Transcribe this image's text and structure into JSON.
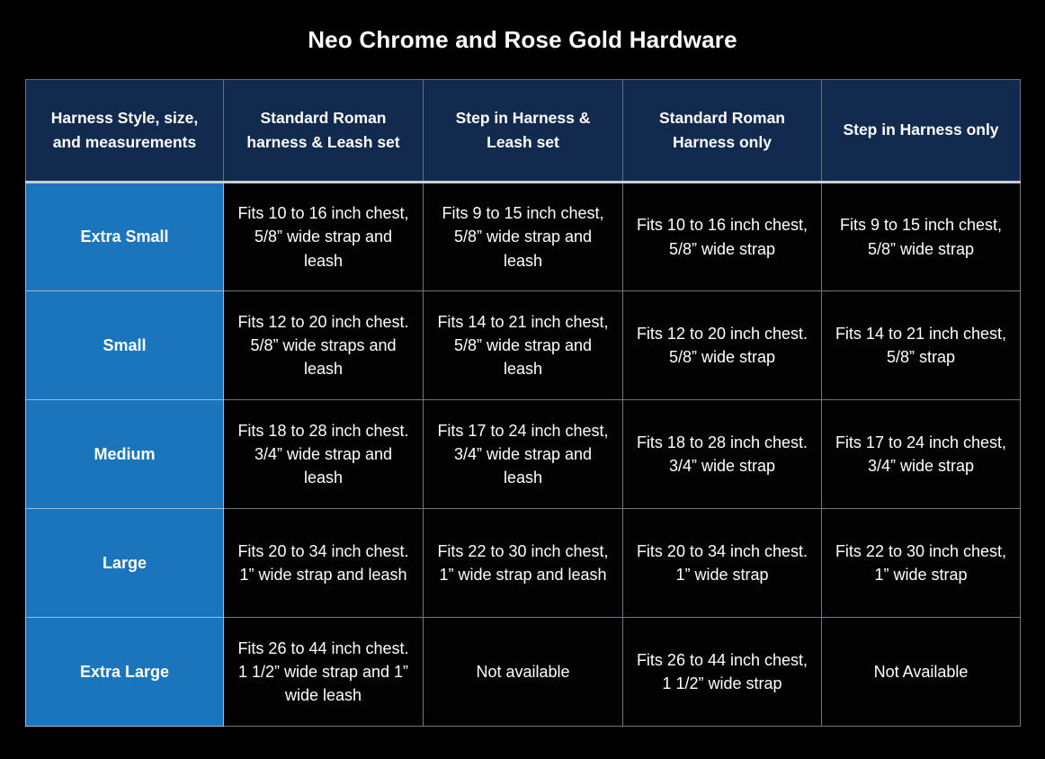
{
  "title": "Neo Chrome and Rose Gold Hardware",
  "colors": {
    "background": "#000000",
    "header_bg": "#112a4e",
    "row_label_bg": "#1b75bc",
    "cell_bg": "#020202",
    "text": "#ffffff",
    "grid_line": "#87909a"
  },
  "chart_data": {
    "type": "table",
    "title": "Neo Chrome and Rose Gold Hardware",
    "columns": [
      "Harness Style, size, and measurements",
      "Standard Roman harness & Leash set",
      "Step in Harness & Leash set",
      "Standard Roman Harness only",
      "Step in Harness only"
    ],
    "rows": [
      {
        "label": "Extra Small",
        "cells": [
          "Fits 10 to 16 inch chest, 5/8” wide strap and leash",
          "Fits 9 to 15 inch chest, 5/8” wide strap and leash",
          "Fits 10 to 16 inch chest, 5/8” wide strap",
          "Fits 9 to 15 inch chest, 5/8” wide strap"
        ]
      },
      {
        "label": "Small",
        "cells": [
          "Fits 12 to 20 inch chest. 5/8” wide straps and leash",
          "Fits 14 to 21 inch chest, 5/8” wide strap and leash",
          "Fits 12 to 20 inch chest. 5/8” wide strap",
          "Fits 14 to 21 inch chest, 5/8” strap"
        ]
      },
      {
        "label": "Medium",
        "cells": [
          "Fits 18 to 28 inch chest. 3/4” wide strap and leash",
          "Fits 17 to 24 inch chest, 3/4” wide strap and leash",
          "Fits 18 to 28 inch chest. 3/4” wide strap",
          "Fits 17 to 24 inch chest, 3/4” wide strap"
        ]
      },
      {
        "label": "Large",
        "cells": [
          "Fits 20 to 34 inch chest. 1” wide strap and leash",
          "Fits 22 to 30 inch chest, 1” wide strap and leash",
          "Fits 20 to 34 inch chest. 1” wide strap",
          "Fits 22 to 30 inch chest, 1” wide strap"
        ]
      },
      {
        "label": "Extra Large",
        "cells": [
          "Fits 26 to 44 inch chest. 1 1/2” wide strap and 1” wide leash",
          "Not available",
          "Fits 26 to 44 inch chest, 1 1/2” wide strap",
          "Not Available"
        ]
      }
    ]
  }
}
